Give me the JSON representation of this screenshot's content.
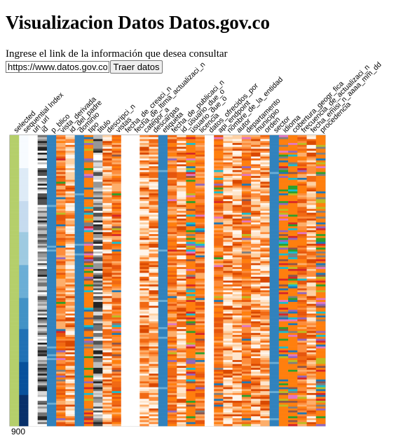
{
  "page": {
    "title": "Visualizacion Datos Datos.gov.co",
    "prompt": "Ingrese el link de la información que desea consultar",
    "input_value": "https://www.datos.gov.co/resource/",
    "button_label": "Traer datos"
  },
  "chart_data": {
    "type": "heatmap",
    "title": "",
    "row_count_label": "900",
    "columns": [
      {
        "label": "selected",
        "scheme": "selected"
      },
      {
        "label": "sequential Index",
        "scheme": "index"
      },
      {
        "label": "uri_url",
        "scheme": "white"
      },
      {
        "label": "id",
        "scheme": "gray"
      },
      {
        "label": "p_blico",
        "scheme": "blue"
      },
      {
        "label": "vista_derivada",
        "scheme": "orange"
      },
      {
        "label": "id_del_padre",
        "scheme": "reds"
      },
      {
        "label": "dominio",
        "scheme": "blue"
      },
      {
        "label": "tipo",
        "scheme": "cat"
      },
      {
        "label": "titulo",
        "scheme": "gray"
      },
      {
        "label": "descripci_n",
        "scheme": "reds"
      },
      {
        "label": "vistas",
        "scheme": "orange"
      },
      {
        "label": "fecha_de_creaci_n",
        "scheme": "white"
      },
      {
        "label": "fecha_de_ltima_actualizaci_n",
        "scheme": "white"
      },
      {
        "label": "categor_a",
        "scheme": "reds"
      },
      {
        "label": "descargas",
        "scheme": "reds"
      },
      {
        "label": "etiqueta",
        "scheme": "blue"
      },
      {
        "label": "fecha_de_publicaci_n",
        "scheme": "orange"
      },
      {
        "label": "id_usuario_due_o",
        "scheme": "reds"
      },
      {
        "label": "usuario_due_o",
        "scheme": "cat"
      },
      {
        "label": "licencia",
        "scheme": "orange"
      },
      {
        "label": "datos_ofrecidos_por",
        "scheme": "white"
      },
      {
        "label": "api_endpoint",
        "scheme": "orange"
      },
      {
        "label": "nombre_de_la_entidad",
        "scheme": "reds"
      },
      {
        "label": "autor",
        "scheme": "reds"
      },
      {
        "label": "departamento",
        "scheme": "orange"
      },
      {
        "label": "municipio",
        "scheme": "reds"
      },
      {
        "label": "orden",
        "scheme": "reds"
      },
      {
        "label": "sector",
        "scheme": "blue"
      },
      {
        "label": "idioma",
        "scheme": "cat"
      },
      {
        "label": "cobertura_geogr_fica",
        "scheme": "cat"
      },
      {
        "label": "frecuencia_de_actualizaci_n",
        "scheme": "orange"
      },
      {
        "label": "fecha_emisi_n_aaaa_mm_dd",
        "scheme": "reds"
      },
      {
        "label": "procedencia",
        "scheme": "cat"
      }
    ]
  }
}
